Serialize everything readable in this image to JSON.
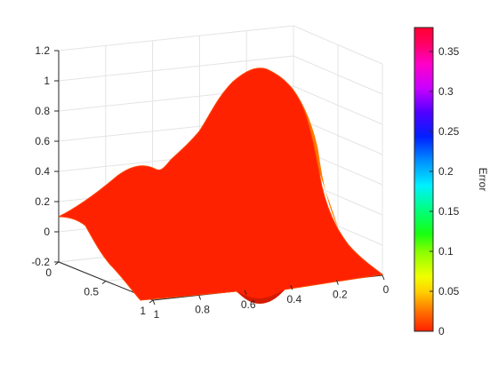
{
  "chart_data": {
    "type": "surface",
    "title": "",
    "xlabel": "",
    "ylabel": "",
    "zlabel": "",
    "x_ticks": [
      "0",
      "0.5",
      "1"
    ],
    "y_ticks": [
      "1",
      "0.8",
      "0.6",
      "0.4",
      "0.2",
      "0"
    ],
    "z_ticks": [
      "-0.2",
      "0",
      "0.2",
      "0.4",
      "0.6",
      "0.8",
      "1",
      "1.2"
    ],
    "xlim": [
      0,
      1
    ],
    "ylim": [
      0,
      1
    ],
    "zlim": [
      -0.2,
      1.2
    ],
    "grid": true,
    "surface_color": "#ff2200",
    "surface_outline_color": "#ff4400",
    "colorbar": {
      "label": "Error",
      "range": [
        0,
        0.38
      ],
      "ticks": [
        "0",
        "0.05",
        "0.1",
        "0.15",
        "0.2",
        "0.25",
        "0.3",
        "0.35"
      ],
      "tick_values": [
        0,
        0.05,
        0.1,
        0.15,
        0.2,
        0.25,
        0.3,
        0.35
      ],
      "colormap": "hsv"
    }
  }
}
